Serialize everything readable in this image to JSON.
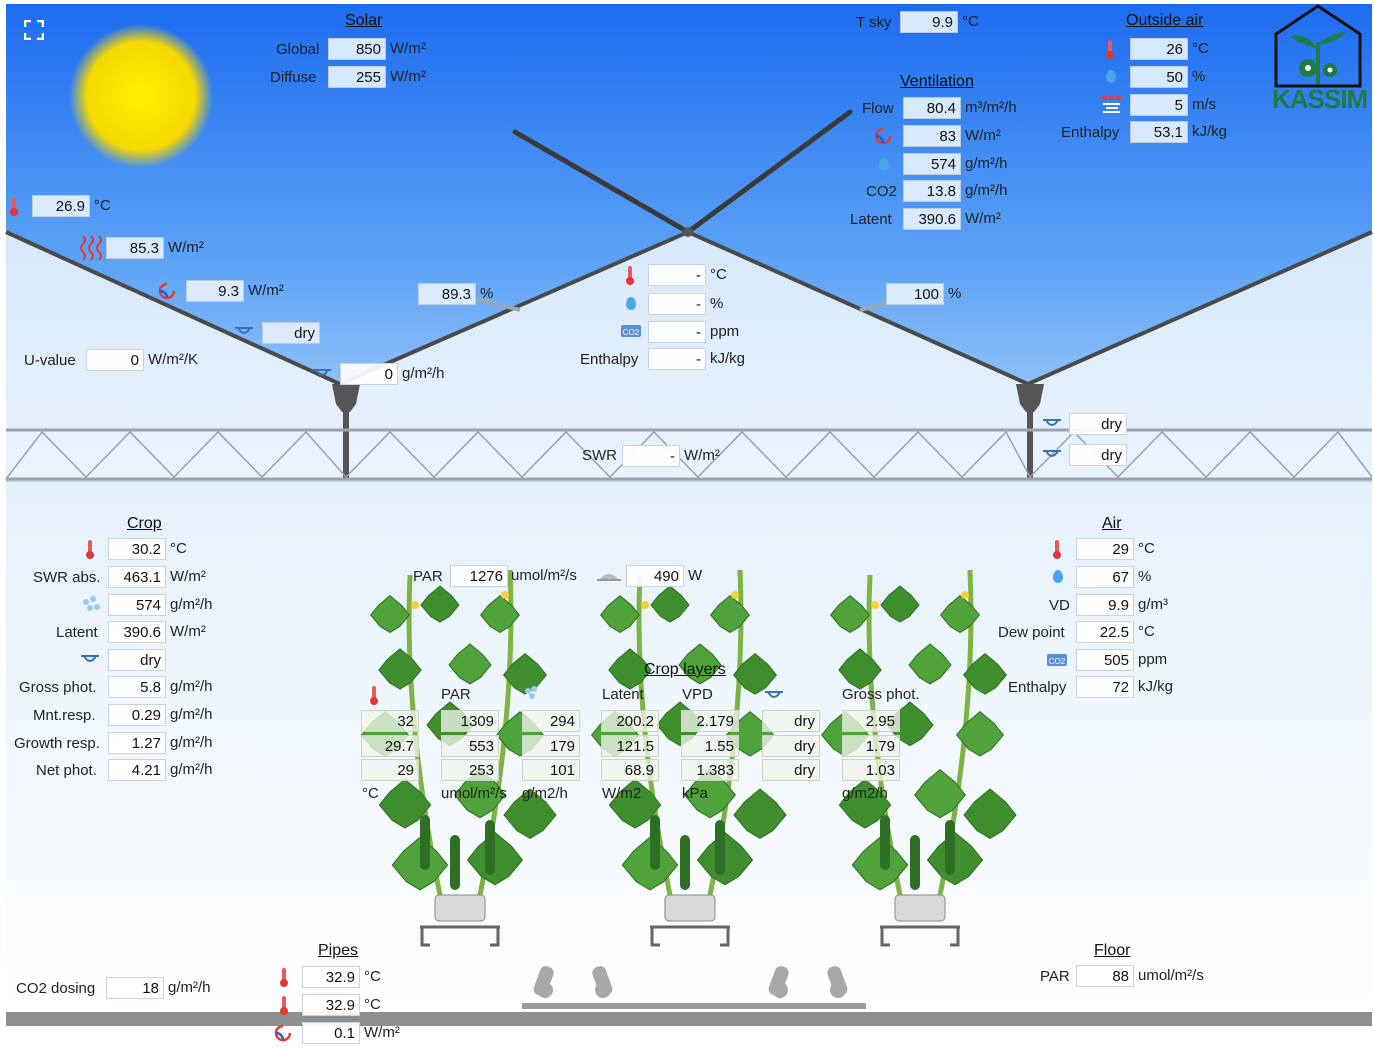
{
  "logo": {
    "text": "KASSIM"
  },
  "solar": {
    "header": "Solar",
    "global_label": "Global",
    "global_value": "850",
    "global_unit": "W/m²",
    "diffuse_label": "Diffuse",
    "diffuse_value": "255",
    "diffuse_unit": "W/m²"
  },
  "tsky": {
    "label": "T sky",
    "value": "9.9",
    "unit": "°C"
  },
  "outside_air": {
    "header": "Outside air",
    "temp_value": "26",
    "temp_unit": "°C",
    "humidity_value": "50",
    "humidity_unit": "%",
    "wind_value": "5",
    "wind_unit": "m/s",
    "enthalpy_label": "Enthalpy",
    "enthalpy_value": "53.1",
    "enthalpy_unit": "kJ/kg"
  },
  "ventilation": {
    "header": "Ventilation",
    "flow_label": "Flow",
    "flow_value": "80.4",
    "flow_unit": "m³/m²/h",
    "heat_value": "83",
    "heat_unit": "W/m²",
    "vapour_value": "574",
    "vapour_unit": "g/m²/h",
    "co2_label": "CO2",
    "co2_value": "13.8",
    "co2_unit": "g/m²/h",
    "latent_label": "Latent",
    "latent_value": "390.6",
    "latent_unit": "W/m²"
  },
  "roof": {
    "temp_value": "26.9",
    "temp_unit": "°C",
    "radiation_value": "85.3",
    "radiation_unit": "W/m²",
    "convection_value": "9.3",
    "convection_unit": "W/m²",
    "condensation_value": "dry",
    "uvalue_label": "U-value",
    "uvalue_value": "0",
    "uvalue_unit": "W/m²/K",
    "gutter_value": "0",
    "gutter_unit": "g/m²/h",
    "left_transmission_value": "89.3",
    "left_transmission_unit": "%",
    "right_transmission_value": "100",
    "right_transmission_unit": "%"
  },
  "screen_air": {
    "temp_value": "-",
    "temp_unit": "°C",
    "humidity_value": "-",
    "humidity_unit": "%",
    "co2_value": "-",
    "co2_unit": "ppm",
    "enthalpy_label": "Enthalpy",
    "enthalpy_value": "-",
    "enthalpy_unit": "kJ/kg"
  },
  "screens": {
    "swr_label": "SWR",
    "swr_value": "-",
    "swr_unit": "W/m²",
    "screen1_value": "dry",
    "screen2_value": "dry"
  },
  "crop": {
    "header": "Crop",
    "temp_value": "30.2",
    "temp_unit": "°C",
    "swr_label": "SWR abs.",
    "swr_value": "463.1",
    "swr_unit": "W/m²",
    "transp_value": "574",
    "transp_unit": "g/m²/h",
    "latent_label": "Latent",
    "latent_value": "390.6",
    "latent_unit": "W/m²",
    "wet_value": "dry",
    "gross_label": "Gross phot.",
    "gross_value": "5.8",
    "gross_unit": "g/m²/h",
    "mnt_label": "Mnt.resp.",
    "mnt_value": "0.29",
    "mnt_unit": "g/m²/h",
    "growth_label": "Growth resp.",
    "growth_value": "1.27",
    "growth_unit": "g/m²/h",
    "net_label": "Net phot.",
    "net_value": "4.21",
    "net_unit": "g/m²/h"
  },
  "canopy": {
    "par_label": "PAR",
    "par_value": "1276",
    "par_unit": "umol/m²/s",
    "lamp_value": "490",
    "lamp_unit": "W"
  },
  "crop_layers": {
    "header": "Crop layers",
    "columns": [
      "PAR",
      "Latent",
      "VPD",
      "Gross phot."
    ],
    "units": [
      "°C",
      "umol/m²/s",
      "g/m2/h",
      "W/m2",
      "kPa",
      "g/m2/h"
    ],
    "rows": [
      [
        "32",
        "1309",
        "294",
        "200.2",
        "2.179",
        "dry",
        "2.95"
      ],
      [
        "29.7",
        "553",
        "179",
        "121.5",
        "1.55",
        "dry",
        "1.79"
      ],
      [
        "29",
        "253",
        "101",
        "68.9",
        "1.383",
        "dry",
        "1.03"
      ]
    ]
  },
  "air": {
    "header": "Air",
    "temp_value": "29",
    "temp_unit": "°C",
    "humidity_value": "67",
    "humidity_unit": "%",
    "vd_label": "VD",
    "vd_value": "9.9",
    "vd_unit": "g/m³",
    "dew_label": "Dew point",
    "dew_value": "22.5",
    "dew_unit": "°C",
    "co2_value": "505",
    "co2_unit": "ppm",
    "enthalpy_label": "Enthalpy",
    "enthalpy_value": "72",
    "enthalpy_unit": "kJ/kg"
  },
  "pipes": {
    "header": "Pipes",
    "pipe1_value": "32.9",
    "pipe1_unit": "°C",
    "pipe2_value": "32.9",
    "pipe2_unit": "°C",
    "heat_value": "0.1",
    "heat_unit": "W/m²"
  },
  "co2_dosing": {
    "label": "CO2 dosing",
    "value": "18",
    "unit": "g/m²/h"
  },
  "floor": {
    "header": "Floor",
    "par_label": "PAR",
    "par_value": "88",
    "par_unit": "umol/m²/s"
  },
  "colors": {
    "sky_top": "#1c6ff0",
    "sky_bottom": "#b9d9fb",
    "inside": "#e8f2fc",
    "sun": "#f5d800",
    "logo": "#1f7a46",
    "roof": "#3c3c3c",
    "hot": "#e53935"
  }
}
